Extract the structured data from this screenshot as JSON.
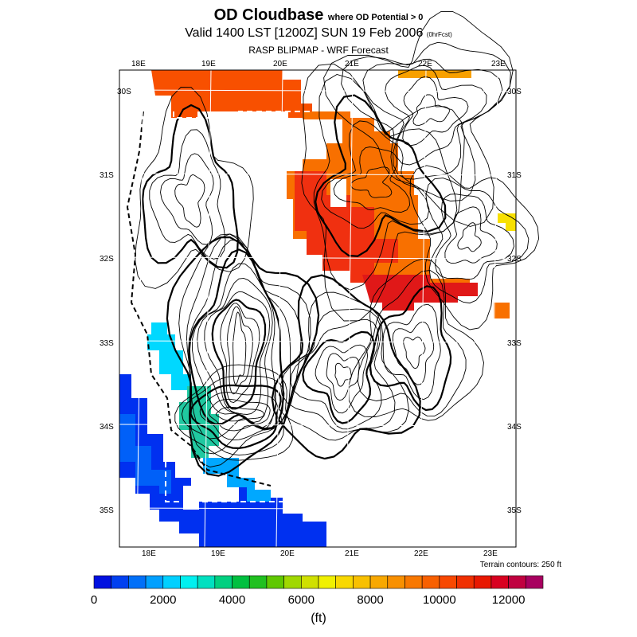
{
  "title": {
    "main": "OD Cloudbase",
    "main_suffix": "where OD Potential > 0",
    "valid": "Valid 1400 LST [1200Z] SUN 19 Feb 2006",
    "valid_suffix": "(0hrFcst)",
    "model": "RASP BLIPMAP - WRF Forecast"
  },
  "axes": {
    "top_lon": [
      "18E",
      "19E",
      "20E",
      "21E",
      "22E",
      "23E"
    ],
    "bottom_lon": [
      "18E",
      "19E",
      "20E",
      "21E",
      "22E",
      "23E"
    ],
    "left_lat": [
      "30S",
      "31S",
      "32S",
      "33S",
      "34S",
      "35S"
    ],
    "right_lat": [
      "30S",
      "31S",
      "32S",
      "33S",
      "34S",
      "35S"
    ]
  },
  "terrain_note": "Terrain contours: 250 ft",
  "colorbar": {
    "ticks": [
      "0",
      "2000",
      "4000",
      "6000",
      "8000",
      "10000",
      "12000"
    ],
    "units": "(ft)",
    "colors": [
      "#0010e0",
      "#0040f0",
      "#0070f8",
      "#00a0ff",
      "#00d0ff",
      "#00f0f0",
      "#00e0c0",
      "#00d080",
      "#00c040",
      "#20c020",
      "#60c800",
      "#a0d800",
      "#d0e000",
      "#f0f000",
      "#f8d800",
      "#f8c000",
      "#f8a800",
      "#f89000",
      "#f87800",
      "#f86000",
      "#f84800",
      "#f03000",
      "#e81800",
      "#d80020",
      "#c00040",
      "#a80060"
    ]
  }
}
